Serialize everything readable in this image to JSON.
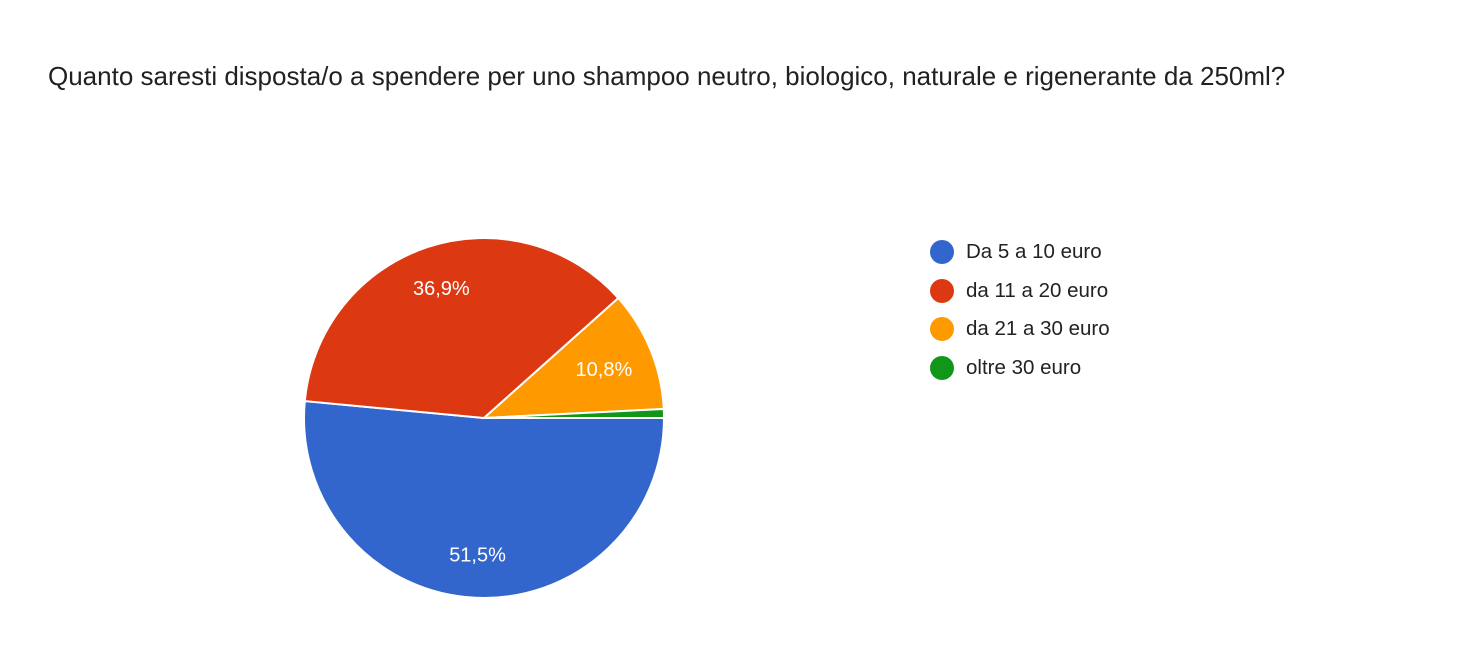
{
  "chart_data": {
    "type": "pie",
    "title": "Quanto saresti disposta/o a spendere per uno shampoo neutro, biologico, naturale e rigenerante da 250ml?",
    "categories": [
      "Da 5 a 10 euro",
      "da 11 a 20 euro",
      "da 21 a 30 euro",
      "oltre 30 euro"
    ],
    "values": [
      51.5,
      36.9,
      10.8,
      0.8
    ],
    "data_labels": [
      "51,5%",
      "36,9%",
      "10,8%",
      ""
    ],
    "colors": [
      "#3366cc",
      "#dc3912",
      "#ff9900",
      "#109618"
    ],
    "legend_position": "right"
  }
}
